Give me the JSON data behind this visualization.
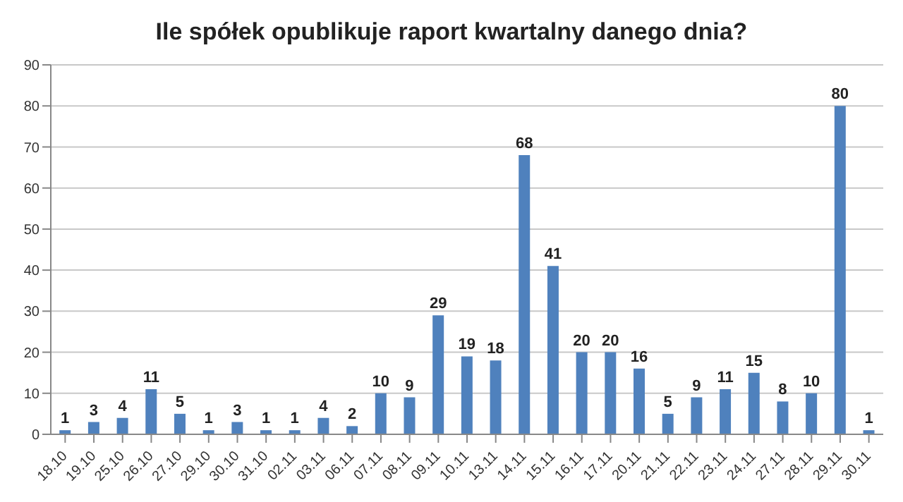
{
  "chart_data": {
    "type": "bar",
    "title": "Ile spółek opublikuje raport kwartalny danego dnia?",
    "categories": [
      "18.10",
      "19.10",
      "25.10",
      "26.10",
      "27.10",
      "29.10",
      "30.10",
      "31.10",
      "02.11",
      "03.11",
      "06.11",
      "07.11",
      "08.11",
      "09.11",
      "10.11",
      "13.11",
      "14.11",
      "15.11",
      "16.11",
      "17.11",
      "20.11",
      "21.11",
      "22.11",
      "23.11",
      "24.11",
      "27.11",
      "28.11",
      "29.11",
      "30.11"
    ],
    "values": [
      1,
      3,
      4,
      11,
      5,
      1,
      3,
      1,
      1,
      4,
      2,
      10,
      9,
      29,
      19,
      18,
      68,
      41,
      20,
      20,
      16,
      5,
      9,
      11,
      15,
      8,
      10,
      80,
      1
    ],
    "color": "#4f81bd",
    "ylim": [
      0,
      90
    ],
    "yticks": [
      0,
      10,
      20,
      30,
      40,
      50,
      60,
      70,
      80,
      90
    ],
    "grid": "y",
    "data_labels": true
  }
}
